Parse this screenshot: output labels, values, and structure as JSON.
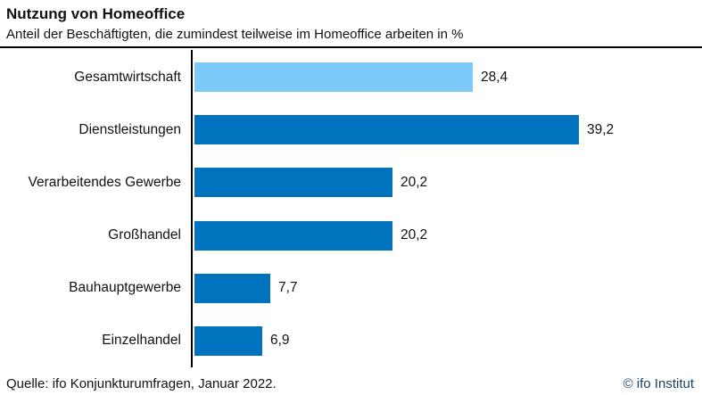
{
  "header": {
    "title": "Nutzung von Homeoffice",
    "subtitle": "Anteil der Beschäftigten, die zumindest teilweise im Homeoffice arbeiten in %"
  },
  "footer": {
    "source": "Quelle: ifo Konjunkturumfragen, Januar 2022.",
    "copyright": "© ifo Institut"
  },
  "colors": {
    "bar_default": "#0073BE",
    "bar_highlight": "#7DC9FA",
    "axis": "#000000",
    "copyright_text": "#17455C"
  },
  "chart_data": {
    "type": "bar",
    "orientation": "horizontal",
    "title": "Nutzung von Homeoffice",
    "subtitle": "Anteil der Beschäftigten, die zumindest teilweise im Homeoffice arbeiten in %",
    "categories": [
      "Gesamtwirtschaft",
      "Dienstleistungen",
      "Verarbeitendes Gewerbe",
      "Großhandel",
      "Bauhauptgewerbe",
      "Einzelhandel"
    ],
    "values": [
      28.4,
      39.2,
      20.2,
      20.2,
      7.7,
      6.9
    ],
    "value_labels": [
      "28,4",
      "39,2",
      "20,2",
      "20,2",
      "7,7",
      "6,9"
    ],
    "highlight_index": 0,
    "xlim": [
      0,
      45
    ],
    "grid": false,
    "legend": false,
    "value_labels_position": "right-of-bar"
  }
}
